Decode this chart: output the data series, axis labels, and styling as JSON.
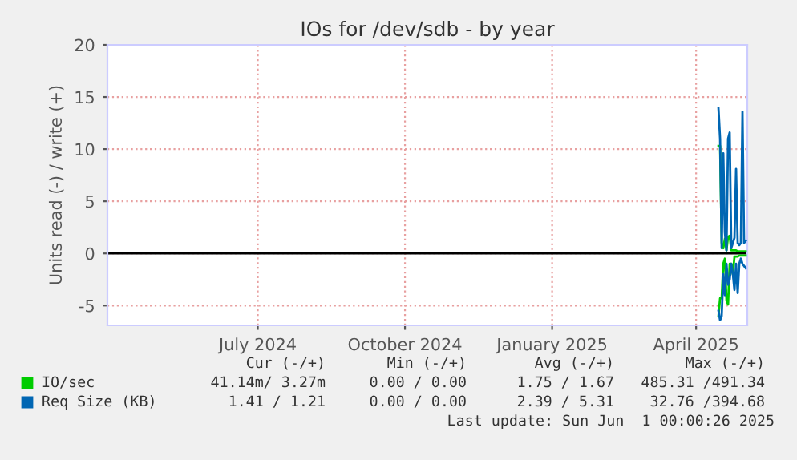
{
  "chart_data": {
    "type": "line",
    "title": "IOs for /dev/sdb - by year",
    "ylabel": "Units read (-) / write (+)",
    "x": [
      "2025-04-15",
      "2025-04-16",
      "2025-04-17",
      "2025-04-18",
      "2025-04-19",
      "2025-04-20",
      "2025-04-21",
      "2025-04-22",
      "2025-04-23",
      "2025-04-24",
      "2025-04-25",
      "2025-04-26",
      "2025-04-27",
      "2025-04-28",
      "2025-04-29",
      "2025-04-30",
      "2025-05-01",
      "2025-05-02"
    ],
    "series": [
      {
        "name": "IO/sec",
        "color": "#00cc00",
        "values": [
          10.3,
          10.3,
          1.0,
          0.5,
          1.4,
          0.3,
          1.6,
          1.7,
          0.3,
          0.3,
          0.3,
          0.3,
          0.2,
          0.2,
          0.2,
          0.2,
          0.2,
          0.2
        ]
      },
      {
        "color": "#00cc00",
        "values": [
          -6.0,
          -4.3,
          -4.3,
          -1.0,
          -0.5,
          -4.5,
          -4.9,
          -1.0,
          -1.0,
          -2.0,
          -0.3,
          -0.3,
          -0.3,
          -0.2,
          -0.2,
          -0.2,
          -0.2,
          -0.2
        ]
      },
      {
        "name": "Req Size (KB)",
        "color": "#0066b3",
        "values": [
          13.9,
          11.0,
          0.5,
          9.6,
          2.0,
          0.3,
          11.0,
          11.6,
          0.5,
          1.0,
          1.5,
          8.1,
          1.0,
          0.8,
          1.0,
          13.6,
          1.0,
          1.2
        ]
      },
      {
        "color": "#0066b3",
        "values": [
          -5.5,
          -6.4,
          -6.0,
          -2.0,
          -4.0,
          -1.0,
          -3.0,
          -2.5,
          -1.0,
          -2.0,
          -3.5,
          -1.0,
          -3.8,
          -1.0,
          -0.5,
          -1.0,
          -1.2,
          -1.4
        ]
      }
    ],
    "xlim": [
      "2024-03-29",
      "2025-05-03"
    ],
    "xticks": [
      {
        "value": "2024-07-01",
        "label": "July 2024"
      },
      {
        "value": "2024-10-01",
        "label": "October 2024"
      },
      {
        "value": "2025-01-01",
        "label": "January 2025"
      },
      {
        "value": "2025-04-01",
        "label": "April 2025"
      }
    ],
    "ylim": [
      -6.9,
      20
    ],
    "yticks": [
      -5,
      0,
      5,
      10,
      15,
      20
    ],
    "ref_lines": [
      {
        "axis": "y",
        "value": 0,
        "color": "#000000"
      }
    ],
    "grid": true,
    "legend": "bottom",
    "annotations": [
      "Cur (-/+)",
      "Min (-/+)",
      "Avg (-/+)",
      "Max (-/+)",
      "41.14m/ 3.27m",
      "0.00 / 0.00",
      "1.75 / 1.67",
      "485.31 /491.34",
      "1.41 / 1.21",
      "0.00 / 0.00",
      "2.39 / 5.31",
      "32.76 /394.68",
      "Last update: Sun Jun  1 00:00:26 2025"
    ]
  }
}
